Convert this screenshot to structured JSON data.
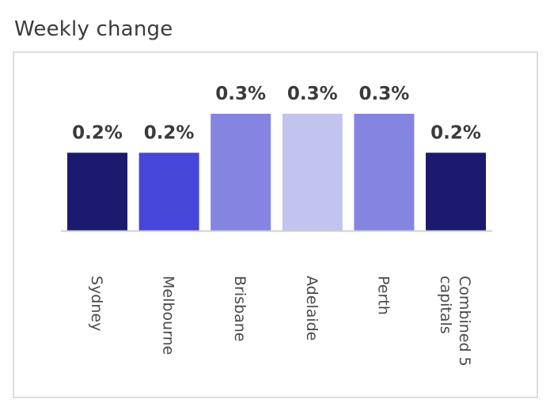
{
  "page": {
    "title": "Weekly change"
  },
  "chart_data": {
    "type": "bar",
    "categories": [
      "Sydney",
      "Melbourne",
      "Brisbane",
      "Adelaide",
      "Perth",
      "Combined 5 capitals"
    ],
    "category_lines": [
      [
        "Sydney"
      ],
      [
        "Melbourne"
      ],
      [
        "Brisbane"
      ],
      [
        "Adelaide"
      ],
      [
        "Perth"
      ],
      [
        "Combined 5",
        "capitals"
      ]
    ],
    "values": [
      0.2,
      0.2,
      0.3,
      0.3,
      0.3,
      0.2
    ],
    "data_labels": [
      "0.2%",
      "0.2%",
      "0.3%",
      "0.3%",
      "0.3%",
      "0.2%"
    ],
    "bar_colors": [
      "#1b1a6e",
      "#4646d8",
      "#8585e1",
      "#c3c3f0",
      "#8585e1",
      "#1b1a6e"
    ],
    "axis_color": "#cfcfcf",
    "ylim": [
      0,
      0.3
    ],
    "grid": false,
    "legend": "none"
  }
}
